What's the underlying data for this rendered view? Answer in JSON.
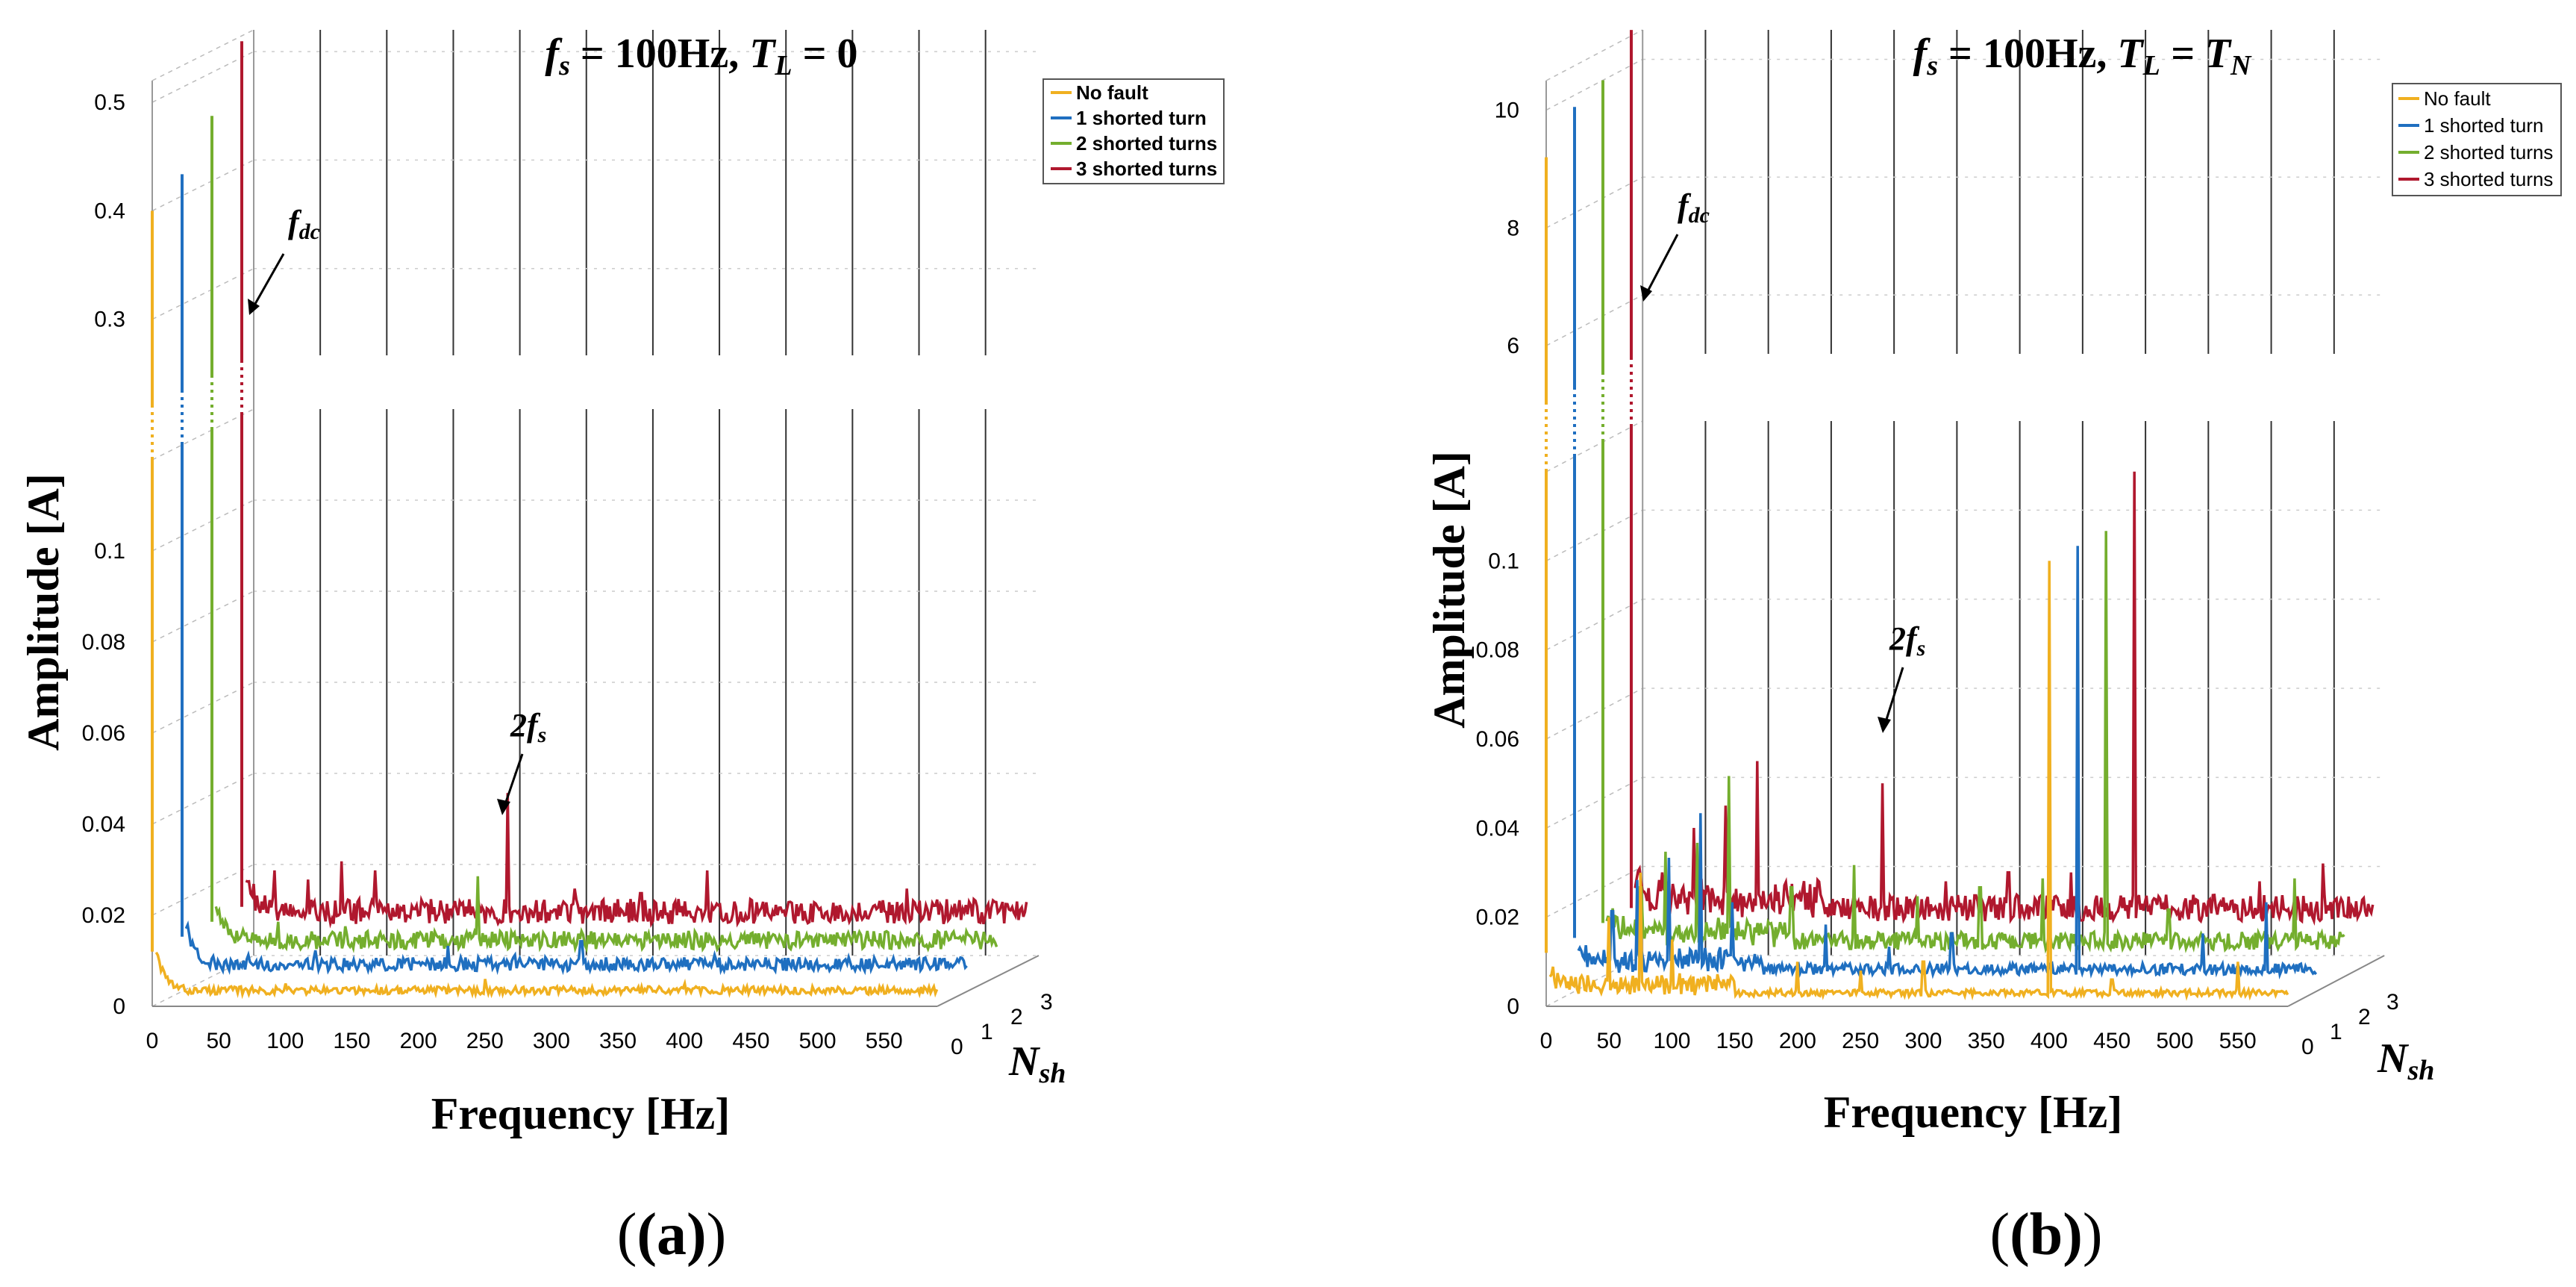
{
  "chart_data": [
    {
      "type": "line",
      "panel_label": "(a)",
      "title": {
        "p1": "f",
        "s1": "s",
        "p2": " = 100Hz, ",
        "p3": "T",
        "s3": "L",
        "p4": " = 0",
        "s4": ""
      },
      "xlabel": "Frequency [Hz]",
      "ylabel": "Amplitude [A]",
      "zlabel": {
        "main": "N",
        "sub": "sh"
      },
      "xlim": [
        0,
        590
      ],
      "xticks": [
        0,
        50,
        100,
        150,
        200,
        250,
        300,
        350,
        400,
        450,
        500,
        550
      ],
      "zticks": [
        0,
        1,
        2,
        3
      ],
      "yticks_lower": [
        "0",
        "0.02",
        "0.04",
        "0.06",
        "0.08",
        "0.1"
      ],
      "yticks_upper": [
        "0.3",
        "0.4",
        "0.5"
      ],
      "ylim_lower": [
        0,
        0.12
      ],
      "ylim_upper": [
        0.22,
        0.52
      ],
      "series": [
        {
          "name": "No fault",
          "color": "#F0B020",
          "z": 0,
          "base": 0.0035,
          "peak": 0.4,
          "peaks": [
            [
              50,
              0.004
            ],
            [
              100,
              0.005
            ],
            [
              150,
              0.003
            ],
            [
              200,
              0.004
            ],
            [
              250,
              0.006
            ],
            [
              300,
              0.004
            ],
            [
              350,
              0.003
            ],
            [
              400,
              0.005
            ],
            [
              500,
              0.003
            ]
          ]
        },
        {
          "name": "1 shorted turn",
          "color": "#1F6FC0",
          "z": 1,
          "base": 0.006,
          "peak": 0.42,
          "peaks": [
            [
              50,
              0.008
            ],
            [
              100,
              0.009
            ],
            [
              150,
              0.007
            ],
            [
              200,
              0.01
            ],
            [
              250,
              0.008
            ],
            [
              300,
              0.011
            ],
            [
              350,
              0.006
            ],
            [
              400,
              0.008
            ],
            [
              500,
              0.005
            ],
            [
              550,
              0.006
            ]
          ]
        },
        {
          "name": "2 shorted turns",
          "color": "#74AE2E",
          "z": 2,
          "base": 0.008,
          "peak": 0.46,
          "peaks": [
            [
              50,
              0.012
            ],
            [
              100,
              0.011
            ],
            [
              150,
              0.007
            ],
            [
              200,
              0.022
            ],
            [
              250,
              0.009
            ],
            [
              300,
              0.008
            ],
            [
              350,
              0.006
            ],
            [
              400,
              0.005
            ],
            [
              500,
              0.005
            ]
          ]
        },
        {
          "name": "3 shorted turns",
          "color": "#B0182E",
          "z": 3,
          "base": 0.011,
          "peak": 0.515,
          "peaks": [
            [
              25,
              0.02
            ],
            [
              50,
              0.018
            ],
            [
              75,
              0.022
            ],
            [
              100,
              0.02
            ],
            [
              200,
              0.037
            ],
            [
              250,
              0.016
            ],
            [
              300,
              0.015
            ],
            [
              350,
              0.02
            ],
            [
              500,
              0.016
            ],
            [
              550,
              0.01
            ]
          ]
        }
      ],
      "annotations": [
        {
          "main": "f",
          "sub": "dc",
          "value_hz": 0
        },
        {
          "main": "2f",
          "sub": "s",
          "value_hz": 200
        }
      ]
    },
    {
      "type": "line",
      "panel_label": "(b)",
      "title": {
        "p1": "f",
        "s1": "s",
        "p2": " = 100Hz, ",
        "p3": "T",
        "s3": "L",
        "p4": " = T",
        "s4": "N"
      },
      "xlabel": "Frequency [Hz]",
      "ylabel": "Amplitude [A]",
      "zlabel": {
        "main": "N",
        "sub": "sh"
      },
      "xlim": [
        0,
        590
      ],
      "xticks": [
        0,
        50,
        100,
        150,
        200,
        250,
        300,
        350,
        400,
        450,
        500,
        550
      ],
      "zticks": [
        0,
        1,
        2,
        3
      ],
      "yticks_lower": [
        "0",
        "0.02",
        "0.04",
        "0.06",
        "0.08",
        "0.1"
      ],
      "yticks_upper": [
        "6",
        "8",
        "10"
      ],
      "ylim_lower": [
        0,
        0.12
      ],
      "ylim_upper": [
        5.0,
        10.5
      ],
      "series": [
        {
          "name": "No fault",
          "color": "#F0B020",
          "z": 0,
          "base": 0.003,
          "peak": 9.2,
          "peaks": [
            [
              50,
              0.02
            ],
            [
              75,
              0.03
            ],
            [
              100,
              0.015
            ],
            [
              200,
              0.01
            ],
            [
              250,
              0.008
            ],
            [
              300,
              0.01
            ],
            [
              400,
              0.1
            ],
            [
              450,
              0.006
            ],
            [
              550,
              0.01
            ]
          ]
        },
        {
          "name": "1 shorted turn",
          "color": "#1F6FC0",
          "z": 1,
          "base": 0.005,
          "peak": 9.8,
          "peaks": [
            [
              30,
              0.018
            ],
            [
              50,
              0.025
            ],
            [
              75,
              0.03
            ],
            [
              100,
              0.04
            ],
            [
              125,
              0.02
            ],
            [
              200,
              0.015
            ],
            [
              250,
              0.01
            ],
            [
              300,
              0.013
            ],
            [
              400,
              0.1
            ],
            [
              500,
              0.013
            ],
            [
              550,
              0.02
            ]
          ]
        },
        {
          "name": "2 shorted turns",
          "color": "#74AE2E",
          "z": 2,
          "base": 0.008,
          "peak": 10.0,
          "peaks": [
            [
              30,
              0.02
            ],
            [
              50,
              0.028
            ],
            [
              75,
              0.03
            ],
            [
              100,
              0.045
            ],
            [
              150,
              0.02
            ],
            [
              200,
              0.025
            ],
            [
              250,
              0.018
            ],
            [
              300,
              0.02
            ],
            [
              350,
              0.022
            ],
            [
              400,
              0.1
            ],
            [
              450,
              0.015
            ],
            [
              550,
              0.022
            ]
          ]
        },
        {
          "name": "3 shorted turns",
          "color": "#B0182E",
          "z": 3,
          "base": 0.012,
          "peak": 10.6,
          "peaks": [
            [
              25,
              0.02
            ],
            [
              50,
              0.03
            ],
            [
              75,
              0.035
            ],
            [
              100,
              0.045
            ],
            [
              150,
              0.015
            ],
            [
              200,
              0.04
            ],
            [
              250,
              0.018
            ],
            [
              300,
              0.02
            ],
            [
              350,
              0.02
            ],
            [
              400,
              0.11
            ],
            [
              450,
              0.01
            ],
            [
              500,
              0.018
            ],
            [
              550,
              0.022
            ]
          ]
        }
      ],
      "annotations": [
        {
          "main": "f",
          "sub": "dc",
          "value_hz": 0
        },
        {
          "main": "2f",
          "sub": "s",
          "value_hz": 200
        }
      ]
    }
  ]
}
